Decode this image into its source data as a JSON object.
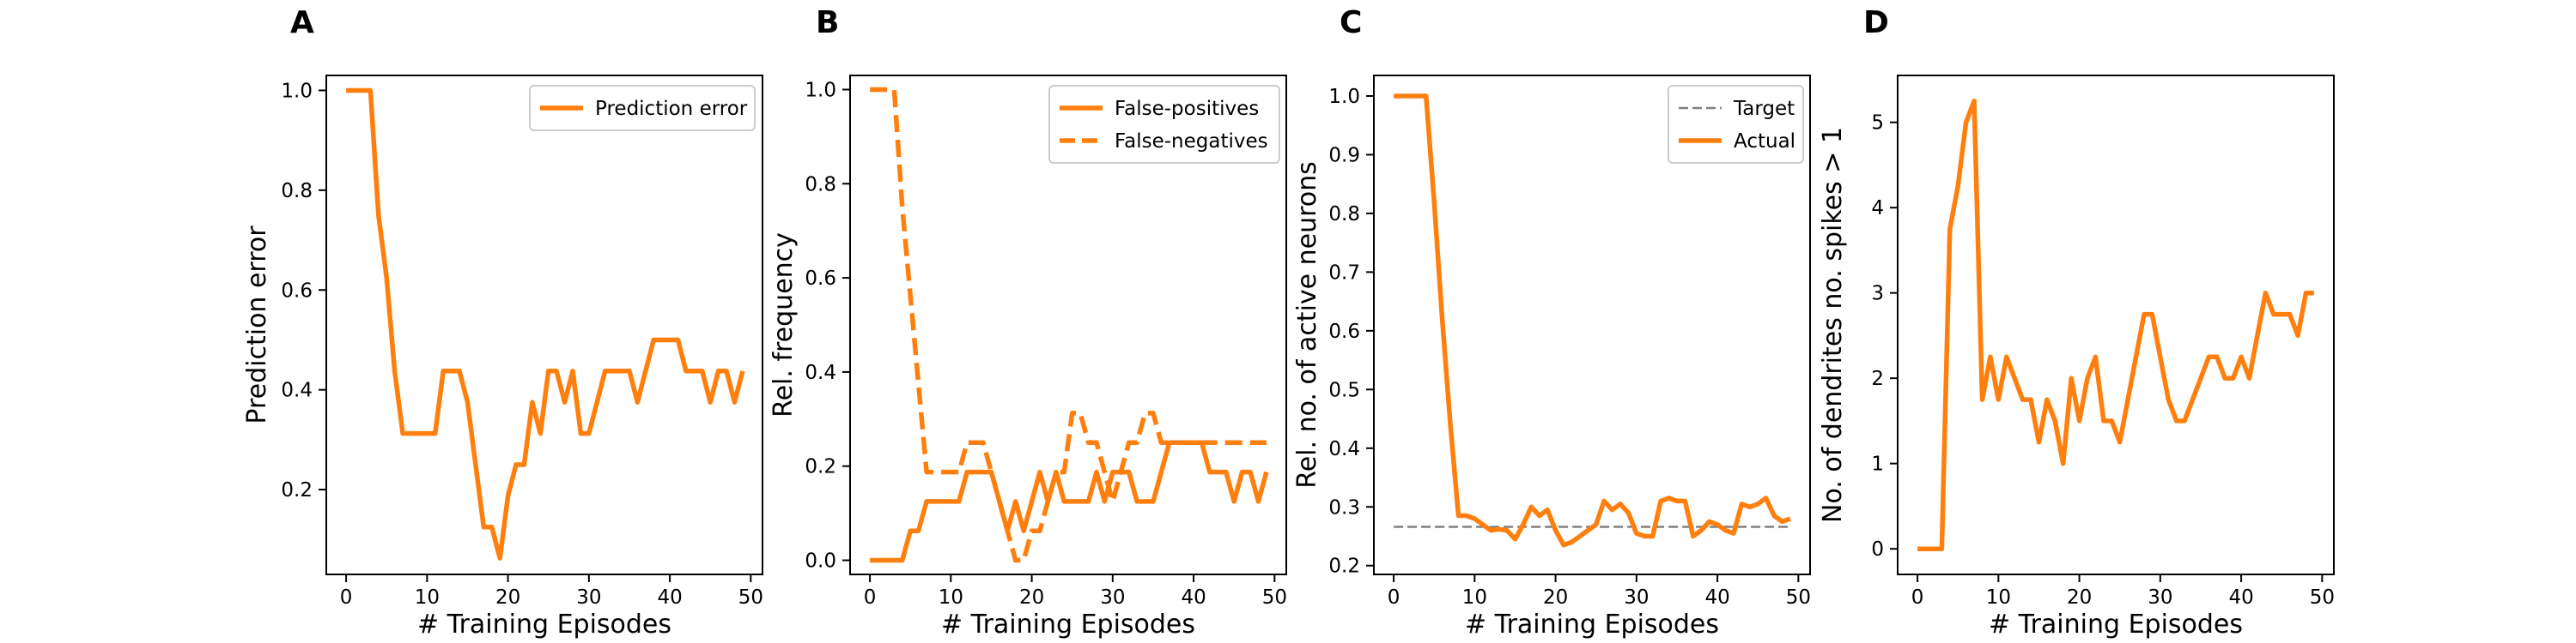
{
  "colors": {
    "series": "#ff7f0e",
    "target": "#808080",
    "axes": "#000000"
  },
  "panels": [
    {
      "letter": "A",
      "xlabel": "# Training Episodes",
      "ylabel": "Prediction error",
      "xlim": [
        -2.45,
        51.45
      ],
      "ylim": [
        0.03,
        1.03
      ],
      "xticks": [
        0,
        10,
        20,
        30,
        40,
        50
      ],
      "yticks": [
        0.2,
        0.4,
        0.6,
        0.8,
        1.0
      ],
      "ytick_labels": [
        "0.2",
        "0.4",
        "0.6",
        "0.8",
        "1.0"
      ],
      "legend_position": "top-right",
      "chart_data": {
        "type": "line",
        "x": [
          0,
          1,
          2,
          3,
          4,
          5,
          6,
          7,
          8,
          9,
          10,
          11,
          12,
          13,
          14,
          15,
          16,
          17,
          18,
          19,
          20,
          21,
          22,
          23,
          24,
          25,
          26,
          27,
          28,
          29,
          30,
          31,
          32,
          33,
          34,
          35,
          36,
          37,
          38,
          39,
          40,
          41,
          42,
          43,
          44,
          45,
          46,
          47,
          48,
          49
        ],
        "series": [
          {
            "name": "Prediction error",
            "style": "solid",
            "values": [
              1.0,
              1.0,
              1.0,
              1.0,
              0.75,
              0.625,
              0.4375,
              0.3125,
              0.3125,
              0.3125,
              0.3125,
              0.3125,
              0.4375,
              0.4375,
              0.4375,
              0.375,
              0.25,
              0.125,
              0.125,
              0.0625,
              0.1875,
              0.25,
              0.25,
              0.375,
              0.3125,
              0.4375,
              0.4375,
              0.375,
              0.4375,
              0.3125,
              0.3125,
              0.375,
              0.4375,
              0.4375,
              0.4375,
              0.4375,
              0.375,
              0.4375,
              0.5,
              0.5,
              0.5,
              0.5,
              0.4375,
              0.4375,
              0.4375,
              0.375,
              0.4375,
              0.4375,
              0.375,
              0.4375
            ]
          }
        ]
      }
    },
    {
      "letter": "B",
      "xlabel": "# Training Episodes",
      "ylabel": "Rel. frequency",
      "xlim": [
        -2.45,
        51.45
      ],
      "ylim": [
        -0.03,
        1.03
      ],
      "xticks": [
        0,
        10,
        20,
        30,
        40,
        50
      ],
      "yticks": [
        0.0,
        0.2,
        0.4,
        0.6,
        0.8,
        1.0
      ],
      "ytick_labels": [
        "0.0",
        "0.2",
        "0.4",
        "0.6",
        "0.8",
        "1.0"
      ],
      "legend_position": "top-right",
      "chart_data": {
        "type": "line",
        "x": [
          0,
          1,
          2,
          3,
          4,
          5,
          6,
          7,
          8,
          9,
          10,
          11,
          12,
          13,
          14,
          15,
          16,
          17,
          18,
          19,
          20,
          21,
          22,
          23,
          24,
          25,
          26,
          27,
          28,
          29,
          30,
          31,
          32,
          33,
          34,
          35,
          36,
          37,
          38,
          39,
          40,
          41,
          42,
          43,
          44,
          45,
          46,
          47,
          48,
          49
        ],
        "series": [
          {
            "name": "False-positives",
            "style": "solid",
            "values": [
              0,
              0,
              0,
              0,
              0,
              0.0625,
              0.0625,
              0.125,
              0.125,
              0.125,
              0.125,
              0.125,
              0.1875,
              0.1875,
              0.1875,
              0.1875,
              0.125,
              0.0625,
              0.125,
              0.0625,
              0.125,
              0.1875,
              0.125,
              0.1875,
              0.125,
              0.125,
              0.125,
              0.125,
              0.1875,
              0.125,
              0.1875,
              0.1875,
              0.1875,
              0.125,
              0.125,
              0.125,
              0.1875,
              0.25,
              0.25,
              0.25,
              0.25,
              0.25,
              0.1875,
              0.1875,
              0.1875,
              0.125,
              0.1875,
              0.1875,
              0.125,
              0.1875
            ]
          },
          {
            "name": "False-negatives",
            "style": "dashed",
            "values": [
              1.0,
              1.0,
              1.0,
              1.0,
              0.75,
              0.5625,
              0.375,
              0.1875,
              0.1875,
              0.1875,
              0.1875,
              0.1875,
              0.25,
              0.25,
              0.25,
              0.1875,
              0.125,
              0.0625,
              0.0,
              0.0,
              0.0625,
              0.0625,
              0.125,
              0.1875,
              0.1875,
              0.3125,
              0.3125,
              0.25,
              0.25,
              0.1875,
              0.125,
              0.1875,
              0.25,
              0.25,
              0.3125,
              0.3125,
              0.25,
              0.25,
              0.25,
              0.25,
              0.25,
              0.25,
              0.25,
              0.25,
              0.25,
              0.25,
              0.25,
              0.25,
              0.25,
              0.25
            ]
          }
        ]
      }
    },
    {
      "letter": "C",
      "xlabel": "# Training Episodes",
      "ylabel": "Rel. no. of active neurons",
      "xlim": [
        -2.45,
        51.45
      ],
      "ylim": [
        0.185,
        1.035
      ],
      "xticks": [
        0,
        10,
        20,
        30,
        40,
        50
      ],
      "yticks": [
        0.2,
        0.3,
        0.4,
        0.5,
        0.6,
        0.7,
        0.8,
        0.9,
        1.0
      ],
      "ytick_labels": [
        "0.2",
        "0.3",
        "0.4",
        "0.5",
        "0.6",
        "0.7",
        "0.8",
        "0.9",
        "1.0"
      ],
      "legend_position": "top-right",
      "chart_data": {
        "type": "line",
        "x": [
          0,
          1,
          2,
          3,
          4,
          5,
          6,
          7,
          8,
          9,
          10,
          11,
          12,
          13,
          14,
          15,
          16,
          17,
          18,
          19,
          20,
          21,
          22,
          23,
          24,
          25,
          26,
          27,
          28,
          29,
          30,
          31,
          32,
          33,
          34,
          35,
          36,
          37,
          38,
          39,
          40,
          41,
          42,
          43,
          44,
          45,
          46,
          47,
          48,
          49
        ],
        "series": [
          {
            "name": "Target",
            "style": "dashed",
            "color": "target",
            "values": [
              0.266,
              0.266,
              0.266,
              0.266,
              0.266,
              0.266,
              0.266,
              0.266,
              0.266,
              0.266,
              0.266,
              0.266,
              0.266,
              0.266,
              0.266,
              0.266,
              0.266,
              0.266,
              0.266,
              0.266,
              0.266,
              0.266,
              0.266,
              0.266,
              0.266,
              0.266,
              0.266,
              0.266,
              0.266,
              0.266,
              0.266,
              0.266,
              0.266,
              0.266,
              0.266,
              0.266,
              0.266,
              0.266,
              0.266,
              0.266,
              0.266,
              0.266,
              0.266,
              0.266,
              0.266,
              0.266,
              0.266,
              0.266,
              0.266,
              0.266
            ]
          },
          {
            "name": "Actual",
            "style": "solid",
            "color": "series",
            "values": [
              1.0,
              1.0,
              1.0,
              1.0,
              1.0,
              0.82,
              0.62,
              0.44,
              0.285,
              0.285,
              0.28,
              0.27,
              0.26,
              0.262,
              0.26,
              0.245,
              0.27,
              0.3,
              0.285,
              0.295,
              0.26,
              0.235,
              0.24,
              0.25,
              0.26,
              0.27,
              0.31,
              0.295,
              0.305,
              0.29,
              0.255,
              0.25,
              0.25,
              0.31,
              0.315,
              0.31,
              0.31,
              0.25,
              0.26,
              0.275,
              0.27,
              0.26,
              0.255,
              0.305,
              0.3,
              0.305,
              0.315,
              0.285,
              0.275,
              0.28
            ]
          }
        ]
      }
    },
    {
      "letter": "D",
      "xlabel": "# Training Episodes",
      "ylabel": "No. of dendrites no. spikes > 1",
      "xlim": [
        -2.45,
        51.45
      ],
      "ylim": [
        -0.3,
        5.55
      ],
      "xticks": [
        0,
        10,
        20,
        30,
        40,
        50
      ],
      "yticks": [
        0,
        1,
        2,
        3,
        4,
        5
      ],
      "ytick_labels": [
        "0",
        "1",
        "2",
        "3",
        "4",
        "5"
      ],
      "legend_position": "none",
      "chart_data": {
        "type": "line",
        "x": [
          0,
          1,
          2,
          3,
          4,
          5,
          6,
          7,
          8,
          9,
          10,
          11,
          12,
          13,
          14,
          15,
          16,
          17,
          18,
          19,
          20,
          21,
          22,
          23,
          24,
          25,
          26,
          27,
          28,
          29,
          30,
          31,
          32,
          33,
          34,
          35,
          36,
          37,
          38,
          39,
          40,
          41,
          42,
          43,
          44,
          45,
          46,
          47,
          48,
          49
        ],
        "series": [
          {
            "name": "",
            "style": "solid",
            "values": [
              0,
              0,
              0,
              0,
              3.75,
              4.25,
              5.0,
              5.25,
              1.75,
              2.25,
              1.75,
              2.25,
              2.0,
              1.75,
              1.75,
              1.25,
              1.75,
              1.5,
              1.0,
              2.0,
              1.5,
              2.0,
              2.25,
              1.5,
              1.5,
              1.25,
              1.75,
              2.25,
              2.75,
              2.75,
              2.25,
              1.75,
              1.5,
              1.5,
              1.75,
              2.0,
              2.25,
              2.25,
              2.0,
              2.0,
              2.25,
              2.0,
              2.5,
              3.0,
              2.75,
              2.75,
              2.75,
              2.5,
              3.0,
              3.0
            ]
          }
        ]
      }
    }
  ]
}
